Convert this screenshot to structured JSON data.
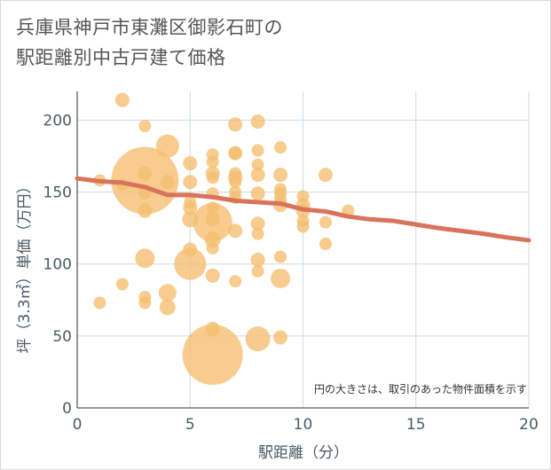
{
  "chart_data": {
    "type": "scatter",
    "title": "兵庫県神戸市東灘区御影石町の\n駅距離別中古戸建て価格",
    "xlabel": "駅距離（分）",
    "ylabel": "坪（3.3㎡）単価（万円）",
    "note": "円の大きさは、取引のあった物件面積を示す",
    "xlim": [
      0,
      20
    ],
    "ylim": [
      0,
      220
    ],
    "xticks": [
      0,
      5,
      10,
      15,
      20
    ],
    "yticks": [
      0,
      50,
      100,
      150,
      200
    ],
    "grid": true,
    "colors": {
      "bubble": "#f5be6e",
      "trend": "#d9735a"
    },
    "points": [
      {
        "x": 1,
        "y": 73,
        "s": 7
      },
      {
        "x": 1,
        "y": 158,
        "s": 7
      },
      {
        "x": 2,
        "y": 214,
        "s": 8
      },
      {
        "x": 2,
        "y": 155,
        "s": 7
      },
      {
        "x": 2,
        "y": 86,
        "s": 7
      },
      {
        "x": 3,
        "y": 196,
        "s": 7
      },
      {
        "x": 3,
        "y": 158,
        "s": 38
      },
      {
        "x": 3,
        "y": 163,
        "s": 8
      },
      {
        "x": 3,
        "y": 150,
        "s": 8
      },
      {
        "x": 3,
        "y": 137,
        "s": 8
      },
      {
        "x": 3,
        "y": 104,
        "s": 11
      },
      {
        "x": 3,
        "y": 77,
        "s": 7
      },
      {
        "x": 3,
        "y": 73,
        "s": 7
      },
      {
        "x": 4,
        "y": 182,
        "s": 13
      },
      {
        "x": 4,
        "y": 157,
        "s": 8
      },
      {
        "x": 4,
        "y": 80,
        "s": 10
      },
      {
        "x": 4,
        "y": 70,
        "s": 9
      },
      {
        "x": 5,
        "y": 170,
        "s": 8
      },
      {
        "x": 5,
        "y": 157,
        "s": 8
      },
      {
        "x": 5,
        "y": 143,
        "s": 7
      },
      {
        "x": 5,
        "y": 139,
        "s": 8
      },
      {
        "x": 5,
        "y": 131,
        "s": 9
      },
      {
        "x": 5,
        "y": 110,
        "s": 8
      },
      {
        "x": 5,
        "y": 100,
        "s": 18
      },
      {
        "x": 6,
        "y": 176,
        "s": 7
      },
      {
        "x": 6,
        "y": 171,
        "s": 7
      },
      {
        "x": 6,
        "y": 163,
        "s": 8
      },
      {
        "x": 6,
        "y": 160,
        "s": 7
      },
      {
        "x": 6,
        "y": 149,
        "s": 7
      },
      {
        "x": 6,
        "y": 139,
        "s": 7
      },
      {
        "x": 6,
        "y": 129,
        "s": 22
      },
      {
        "x": 6,
        "y": 131,
        "s": 8
      },
      {
        "x": 6,
        "y": 117,
        "s": 9
      },
      {
        "x": 6,
        "y": 111,
        "s": 7
      },
      {
        "x": 6,
        "y": 92,
        "s": 8
      },
      {
        "x": 6,
        "y": 55,
        "s": 8
      },
      {
        "x": 6,
        "y": 37,
        "s": 34
      },
      {
        "x": 7,
        "y": 197,
        "s": 8
      },
      {
        "x": 7,
        "y": 177,
        "s": 7
      },
      {
        "x": 7,
        "y": 177,
        "s": 8
      },
      {
        "x": 7,
        "y": 163,
        "s": 7
      },
      {
        "x": 7,
        "y": 160,
        "s": 8
      },
      {
        "x": 7,
        "y": 157,
        "s": 7
      },
      {
        "x": 7,
        "y": 150,
        "s": 7
      },
      {
        "x": 7,
        "y": 146,
        "s": 7
      },
      {
        "x": 7,
        "y": 123,
        "s": 8
      },
      {
        "x": 7,
        "y": 88,
        "s": 7
      },
      {
        "x": 8,
        "y": 199,
        "s": 8
      },
      {
        "x": 8,
        "y": 179,
        "s": 7
      },
      {
        "x": 8,
        "y": 169,
        "s": 7
      },
      {
        "x": 8,
        "y": 162,
        "s": 8
      },
      {
        "x": 8,
        "y": 149,
        "s": 8
      },
      {
        "x": 8,
        "y": 128,
        "s": 8
      },
      {
        "x": 8,
        "y": 121,
        "s": 7
      },
      {
        "x": 8,
        "y": 103,
        "s": 8
      },
      {
        "x": 8,
        "y": 95,
        "s": 7
      },
      {
        "x": 8,
        "y": 48,
        "s": 14
      },
      {
        "x": 9,
        "y": 181,
        "s": 7
      },
      {
        "x": 9,
        "y": 162,
        "s": 8
      },
      {
        "x": 9,
        "y": 152,
        "s": 7
      },
      {
        "x": 9,
        "y": 149,
        "s": 7
      },
      {
        "x": 9,
        "y": 145,
        "s": 7
      },
      {
        "x": 9,
        "y": 141,
        "s": 8
      },
      {
        "x": 9,
        "y": 105,
        "s": 7
      },
      {
        "x": 9,
        "y": 90,
        "s": 11
      },
      {
        "x": 9,
        "y": 49,
        "s": 8
      },
      {
        "x": 10,
        "y": 147,
        "s": 7
      },
      {
        "x": 10,
        "y": 141,
        "s": 8
      },
      {
        "x": 10,
        "y": 137,
        "s": 8
      },
      {
        "x": 10,
        "y": 130,
        "s": 7
      },
      {
        "x": 10,
        "y": 126,
        "s": 7
      },
      {
        "x": 11,
        "y": 162,
        "s": 8
      },
      {
        "x": 11,
        "y": 129,
        "s": 7
      },
      {
        "x": 11,
        "y": 114,
        "s": 7
      },
      {
        "x": 12,
        "y": 137,
        "s": 7
      }
    ],
    "trend": {
      "x": [
        0,
        1,
        2,
        3,
        4,
        5,
        6,
        7,
        8,
        9,
        10,
        11,
        12,
        13,
        14,
        15,
        16,
        17,
        18,
        19,
        20
      ],
      "y": [
        159.5,
        157.5,
        156.5,
        153.5,
        148,
        148,
        146.5,
        144,
        143,
        142,
        138,
        136.5,
        133,
        131,
        130,
        127.5,
        125,
        123,
        121,
        118.5,
        116.5
      ]
    }
  }
}
